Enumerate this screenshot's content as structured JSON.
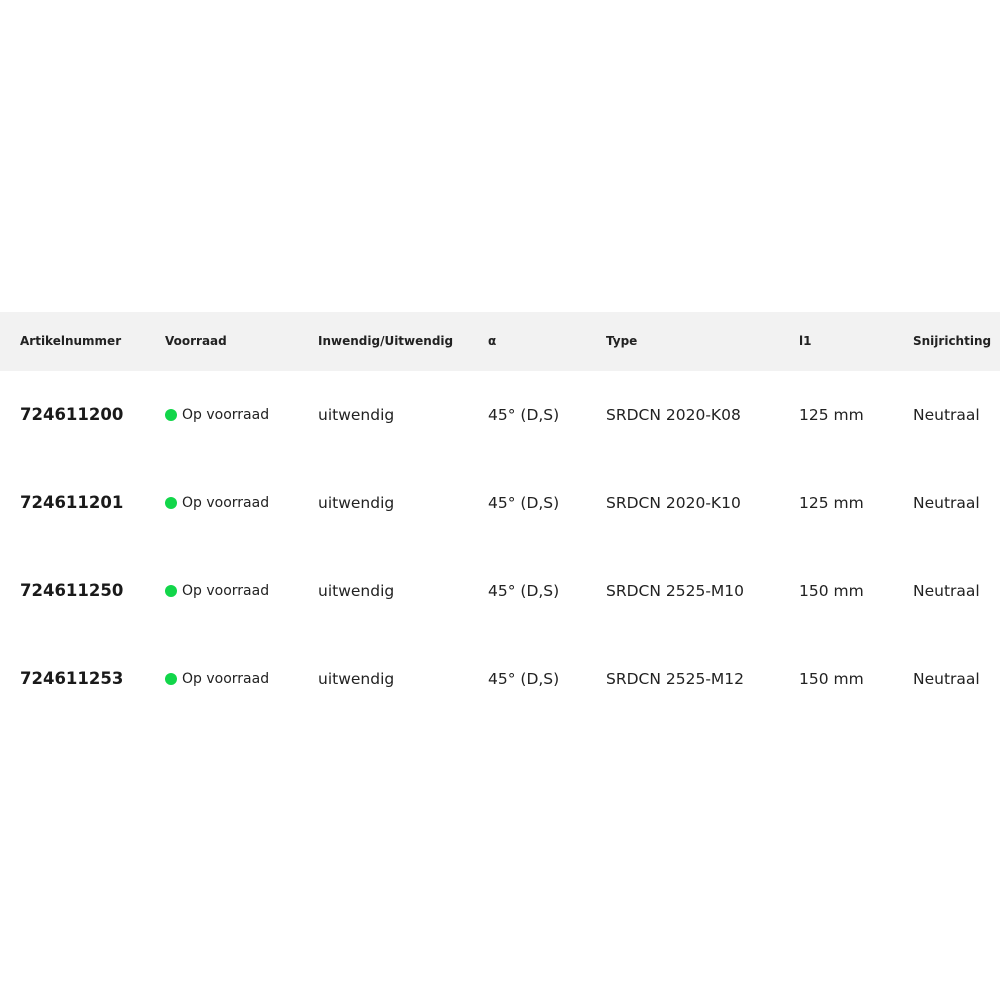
{
  "table": {
    "headers": [
      "Artikelnummer",
      "Voorraad",
      "Inwendig/Uitwendig",
      "α",
      "Type",
      "l1",
      "Snijrichting"
    ],
    "stock_color": "#12d64a",
    "rows": [
      {
        "article": "724611200",
        "stock": "Op voorraad",
        "side": "uitwendig",
        "angle": "45° (D,S)",
        "type": "SRDCN 2020-K08",
        "l1": "125 mm",
        "direction": "Neutraal"
      },
      {
        "article": "724611201",
        "stock": "Op voorraad",
        "side": "uitwendig",
        "angle": "45° (D,S)",
        "type": "SRDCN 2020-K10",
        "l1": "125 mm",
        "direction": "Neutraal"
      },
      {
        "article": "724611250",
        "stock": "Op voorraad",
        "side": "uitwendig",
        "angle": "45° (D,S)",
        "type": "SRDCN 2525-M10",
        "l1": "150 mm",
        "direction": "Neutraal"
      },
      {
        "article": "724611253",
        "stock": "Op voorraad",
        "side": "uitwendig",
        "angle": "45° (D,S)",
        "type": "SRDCN 2525-M12",
        "l1": "150 mm",
        "direction": "Neutraal"
      }
    ]
  }
}
